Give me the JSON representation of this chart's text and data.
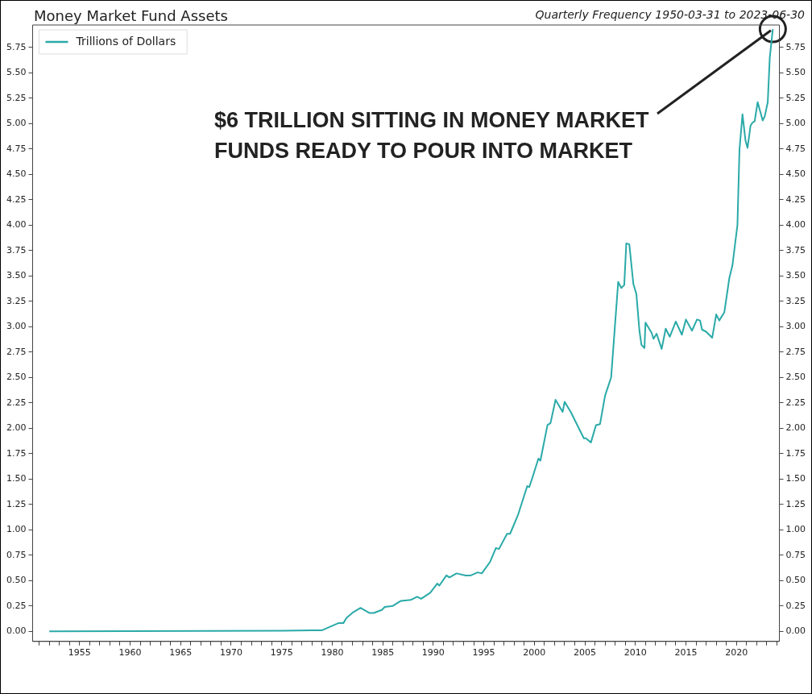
{
  "chart_data": {
    "type": "line",
    "title": "Money Market Fund Assets",
    "subtitle": "Quarterly Frequency 1950-03-31 to 2023-06-30",
    "series": [
      {
        "name": "Trillions of Dollars",
        "color": "#2aaaa8",
        "x": [
          1952,
          1975,
          1978,
          1979.0,
          1980.6,
          1981.1,
          1981.4,
          1982.1,
          1982.8,
          1983.7,
          1984.1,
          1984.9,
          1985.2,
          1986.0,
          1986.8,
          1987.8,
          1988.4,
          1988.8,
          1989.7,
          1990.4,
          1990.6,
          1991.3,
          1991.6,
          1992.3,
          1993.2,
          1993.7,
          1994.4,
          1994.8,
          1995.6,
          1996.2,
          1996.5,
          1997.3,
          1997.6,
          1998.4,
          1999.3,
          1999.5,
          1999.8,
          2000.4,
          2000.6,
          2001.3,
          2001.6,
          2002.1,
          2002.8,
          2003.0,
          2003.6,
          2004.9,
          2005.1,
          2005.6,
          2006.1,
          2006.5,
          2007.0,
          2007.6,
          2008.3,
          2008.6,
          2008.9,
          2009.1,
          2009.4,
          2009.8,
          2010.1,
          2010.4,
          2010.6,
          2010.9,
          2011.0,
          2011.6,
          2011.8,
          2012.1,
          2012.6,
          2013.0,
          2013.4,
          2014.0,
          2014.6,
          2015.0,
          2015.6,
          2016.1,
          2016.4,
          2016.6,
          2017.0,
          2017.6,
          2018.0,
          2018.3,
          2018.8,
          2019.3,
          2019.6,
          2020.1,
          2020.3,
          2020.6,
          2020.9,
          2021.1,
          2021.4,
          2021.6,
          2021.8,
          2022.1,
          2022.6,
          2022.8,
          2023.1,
          2023.3,
          2023.6
        ],
        "values": [
          0,
          0.005,
          0.01,
          0.01,
          0.08,
          0.08,
          0.13,
          0.19,
          0.23,
          0.18,
          0.18,
          0.21,
          0.24,
          0.25,
          0.3,
          0.31,
          0.34,
          0.32,
          0.38,
          0.47,
          0.45,
          0.55,
          0.53,
          0.57,
          0.55,
          0.55,
          0.58,
          0.57,
          0.68,
          0.82,
          0.81,
          0.96,
          0.96,
          1.15,
          1.43,
          1.42,
          1.51,
          1.7,
          1.68,
          2.03,
          2.05,
          2.28,
          2.16,
          2.26,
          2.16,
          1.9,
          1.9,
          1.86,
          2.03,
          2.04,
          2.32,
          2.5,
          3.44,
          3.38,
          3.41,
          3.82,
          3.81,
          3.42,
          3.32,
          2.96,
          2.82,
          2.79,
          3.04,
          2.94,
          2.88,
          2.93,
          2.78,
          2.98,
          2.9,
          3.05,
          2.92,
          3.07,
          2.96,
          3.07,
          3.06,
          2.97,
          2.95,
          2.89,
          3.12,
          3.06,
          3.14,
          3.48,
          3.6,
          4.0,
          4.74,
          5.09,
          4.83,
          4.76,
          4.98,
          5.01,
          5.02,
          5.21,
          5.03,
          5.07,
          5.21,
          5.65,
          5.93
        ]
      }
    ],
    "xlim": [
      1950.35,
      2024.25
    ],
    "xticks": [
      {
        "value": 1951,
        "label": null
      },
      {
        "value": 1952,
        "label": null
      },
      {
        "value": 1953,
        "label": null
      },
      {
        "value": 1954,
        "label": null
      },
      1955,
      {
        "value": 1956,
        "label": null
      },
      {
        "value": 1957,
        "label": null
      },
      {
        "value": 1958,
        "label": null
      },
      {
        "value": 1959,
        "label": null
      },
      1960,
      {
        "value": 1961,
        "label": null
      },
      {
        "value": 1962,
        "label": null
      },
      {
        "value": 1963,
        "label": null
      },
      {
        "value": 1964,
        "label": null
      },
      1965,
      {
        "value": 1966,
        "label": null
      },
      {
        "value": 1967,
        "label": null
      },
      {
        "value": 1968,
        "label": null
      },
      {
        "value": 1969,
        "label": null
      },
      1970,
      {
        "value": 1971,
        "label": null
      },
      {
        "value": 1972,
        "label": null
      },
      {
        "value": 1973,
        "label": null
      },
      {
        "value": 1974,
        "label": null
      },
      1975,
      {
        "value": 1976,
        "label": null
      },
      {
        "value": 1977,
        "label": null
      },
      {
        "value": 1978,
        "label": null
      },
      {
        "value": 1979,
        "label": null
      },
      1980,
      {
        "value": 1981,
        "label": null
      },
      {
        "value": 1982,
        "label": null
      },
      {
        "value": 1983,
        "label": null
      },
      {
        "value": 1984,
        "label": null
      },
      1985,
      {
        "value": 1986,
        "label": null
      },
      {
        "value": 1987,
        "label": null
      },
      {
        "value": 1988,
        "label": null
      },
      {
        "value": 1989,
        "label": null
      },
      1990,
      {
        "value": 1991,
        "label": null
      },
      {
        "value": 1992,
        "label": null
      },
      {
        "value": 1993,
        "label": null
      },
      {
        "value": 1994,
        "label": null
      },
      1995,
      {
        "value": 1996,
        "label": null
      },
      {
        "value": 1997,
        "label": null
      },
      {
        "value": 1998,
        "label": null
      },
      {
        "value": 1999,
        "label": null
      },
      2000,
      {
        "value": 2001,
        "label": null
      },
      {
        "value": 2002,
        "label": null
      },
      {
        "value": 2003,
        "label": null
      },
      {
        "value": 2004,
        "label": null
      },
      2005,
      {
        "value": 2006,
        "label": null
      },
      {
        "value": 2007,
        "label": null
      },
      {
        "value": 2008,
        "label": null
      },
      {
        "value": 2009,
        "label": null
      },
      2010,
      {
        "value": 2011,
        "label": null
      },
      {
        "value": 2012,
        "label": null
      },
      {
        "value": 2013,
        "label": null
      },
      {
        "value": 2014,
        "label": null
      },
      2015,
      {
        "value": 2016,
        "label": null
      },
      {
        "value": 2017,
        "label": null
      },
      {
        "value": 2018,
        "label": null
      },
      {
        "value": 2019,
        "label": null
      },
      2020,
      {
        "value": 2021,
        "label": null
      },
      {
        "value": 2022,
        "label": null
      },
      {
        "value": 2023,
        "label": null
      },
      {
        "value": 2024,
        "label": null
      }
    ],
    "ylim": [
      -0.1,
      5.97
    ],
    "yticks": [
      {
        "value": 0,
        "label": "0.00"
      },
      {
        "value": 0.25,
        "label": "0.25"
      },
      {
        "value": 0.5,
        "label": "0.50"
      },
      {
        "value": 0.75,
        "label": "0.75"
      },
      {
        "value": 1,
        "label": "1.00"
      },
      {
        "value": 1.25,
        "label": "1.25"
      },
      {
        "value": 1.5,
        "label": "1.50"
      },
      {
        "value": 1.75,
        "label": "1.75"
      },
      {
        "value": 2,
        "label": "2.00"
      },
      {
        "value": 2.25,
        "label": "2.25"
      },
      {
        "value": 2.5,
        "label": "2.50"
      },
      {
        "value": 2.75,
        "label": "2.75"
      },
      {
        "value": 3,
        "label": "3.00"
      },
      {
        "value": 3.25,
        "label": "3.25"
      },
      {
        "value": 3.5,
        "label": "3.50"
      },
      {
        "value": 3.75,
        "label": "3.75"
      },
      {
        "value": 4,
        "label": "4.00"
      },
      {
        "value": 4.25,
        "label": "4.25"
      },
      {
        "value": 4.5,
        "label": "4.50"
      },
      {
        "value": 4.75,
        "label": "4.75"
      },
      {
        "value": 5,
        "label": "5.00"
      },
      {
        "value": 5.25,
        "label": "5.25"
      },
      {
        "value": 5.5,
        "label": "5.50"
      },
      {
        "value": 5.75,
        "label": "5.75"
      }
    ],
    "y2lim": [
      -0.1,
      5.97
    ],
    "y2ticks": [
      {
        "value": 0,
        "label": "0.00"
      },
      {
        "value": 0.25,
        "label": "0.25"
      },
      {
        "value": 0.5,
        "label": "0.50"
      },
      {
        "value": 0.75,
        "label": "0.75"
      },
      {
        "value": 1,
        "label": "1.00"
      },
      {
        "value": 1.25,
        "label": "1.25"
      },
      {
        "value": 1.5,
        "label": "1.50"
      },
      {
        "value": 1.75,
        "label": "1.75"
      },
      {
        "value": 2,
        "label": "2.00"
      },
      {
        "value": 2.25,
        "label": "2.25"
      },
      {
        "value": 2.5,
        "label": "2.50"
      },
      {
        "value": 2.75,
        "label": "2.75"
      },
      {
        "value": 3,
        "label": "3.00"
      },
      {
        "value": 3.25,
        "label": "3.25"
      },
      {
        "value": 3.5,
        "label": "3.50"
      },
      {
        "value": 3.75,
        "label": "3.75"
      },
      {
        "value": 4,
        "label": "4.00"
      },
      {
        "value": 4.25,
        "label": "4.25"
      },
      {
        "value": 4.5,
        "label": "4.50"
      },
      {
        "value": 4.75,
        "label": "4.75"
      },
      {
        "value": 5,
        "label": "5.00"
      },
      {
        "value": 5.25,
        "label": "5.25"
      },
      {
        "value": 5.5,
        "label": "5.50"
      },
      {
        "value": 5.75,
        "label": "5.75"
      }
    ],
    "annotations": [
      {
        "text": "$6 TRILLION SITTING IN MONEY MARKET FUNDS READY TO POUR INTO MARKET",
        "x": 2023.6,
        "y": 5.93
      }
    ],
    "grid": false,
    "legend": "top left",
    "marker": "none",
    "line_style": "solid"
  }
}
